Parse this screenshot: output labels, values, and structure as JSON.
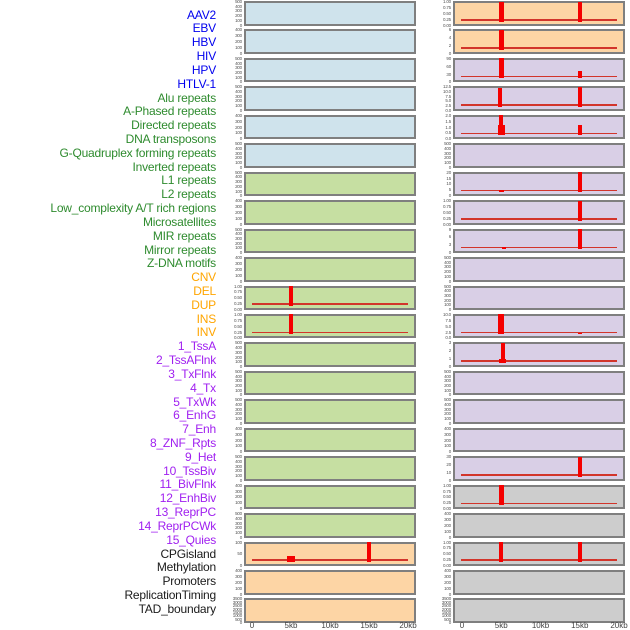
{
  "colors": {
    "label_blue": "#0000EE",
    "label_green": "#2E8B2E",
    "label_orange": "#FFA500",
    "label_purple": "#A020F0",
    "label_black": "#1A1A1A",
    "panel_blue": "#CFE3EC",
    "panel_green": "#C6DFA2",
    "panel_peach": "#FDD5A5",
    "panel_purple": "#D9CFE6",
    "panel_gray": "#CDCDCD",
    "panel_border": "#7F7F7F",
    "spike_red": "#F50000",
    "baseline_red": "#D2352B",
    "tick_text": "#555555",
    "axis_text": "#444444"
  },
  "chart_data": {
    "type": "bar",
    "title": "",
    "x_axis": {
      "tick_labels": [
        "0",
        "5kb",
        "10kb",
        "15kb",
        "20kb"
      ],
      "tick_kb": [
        0,
        5,
        10,
        15,
        20
      ],
      "domain_kb": [
        0,
        20
      ]
    },
    "row_labels": [
      {
        "text": "AAV2",
        "color": "blue"
      },
      {
        "text": "EBV",
        "color": "blue"
      },
      {
        "text": "HBV",
        "color": "blue"
      },
      {
        "text": "HIV",
        "color": "blue"
      },
      {
        "text": "HPV",
        "color": "blue"
      },
      {
        "text": "HTLV-1",
        "color": "blue"
      },
      {
        "text": "Alu repeats",
        "color": "green"
      },
      {
        "text": "A-Phased repeats",
        "color": "green"
      },
      {
        "text": "Directed repeats",
        "color": "green"
      },
      {
        "text": "DNA transposons",
        "color": "green"
      },
      {
        "text": "G-Quadruplex forming repeats",
        "color": "green"
      },
      {
        "text": "Inverted repeats",
        "color": "green"
      },
      {
        "text": "L1 repeats",
        "color": "green"
      },
      {
        "text": "L2 repeats",
        "color": "green"
      },
      {
        "text": "Low_complexity A/T rich regions",
        "color": "green"
      },
      {
        "text": "Microsatellites",
        "color": "green"
      },
      {
        "text": "MIR repeats",
        "color": "green"
      },
      {
        "text": "Mirror repeats",
        "color": "green"
      },
      {
        "text": "Z-DNA motifs",
        "color": "green"
      },
      {
        "text": "CNV",
        "color": "orange"
      },
      {
        "text": "DEL",
        "color": "orange"
      },
      {
        "text": "DUP",
        "color": "orange"
      },
      {
        "text": "INS",
        "color": "orange"
      },
      {
        "text": "INV",
        "color": "orange"
      },
      {
        "text": "1_TssA",
        "color": "purple"
      },
      {
        "text": "2_TssAFlnk",
        "color": "purple"
      },
      {
        "text": "3_TxFlnk",
        "color": "purple"
      },
      {
        "text": "4_Tx",
        "color": "purple"
      },
      {
        "text": "5_TxWk",
        "color": "purple"
      },
      {
        "text": "6_EnhG",
        "color": "purple"
      },
      {
        "text": "7_Enh",
        "color": "purple"
      },
      {
        "text": "8_ZNF_Rpts",
        "color": "purple"
      },
      {
        "text": "9_Het",
        "color": "purple"
      },
      {
        "text": "10_TssBiv",
        "color": "purple"
      },
      {
        "text": "11_BivFlnk",
        "color": "purple"
      },
      {
        "text": "12_EnhBiv",
        "color": "purple"
      },
      {
        "text": "13_ReprPC",
        "color": "purple"
      },
      {
        "text": "14_ReprPCWk",
        "color": "purple"
      },
      {
        "text": "15_Quies",
        "color": "purple"
      },
      {
        "text": "CPGisland",
        "color": "black"
      },
      {
        "text": "Methylation",
        "color": "black"
      },
      {
        "text": "Promoters",
        "color": "black"
      },
      {
        "text": "ReplicationTiming",
        "color": "black"
      },
      {
        "text": "TAD_boundary",
        "color": "black"
      }
    ],
    "columns": [
      {
        "name": "left-track-column",
        "panels": [
          {
            "bg": "blue",
            "yticks": [
              "500",
              "400",
              "300",
              "200",
              "100",
              "0"
            ],
            "spikes": [],
            "baseline": false
          },
          {
            "bg": "blue",
            "yticks": [
              "400",
              "300",
              "200",
              "100",
              "0"
            ],
            "spikes": [],
            "baseline": false
          },
          {
            "bg": "blue",
            "yticks": [
              "500",
              "400",
              "300",
              "200",
              "100",
              "0"
            ],
            "spikes": [],
            "baseline": false
          },
          {
            "bg": "blue",
            "yticks": [
              "500",
              "400",
              "300",
              "200",
              "100",
              "0"
            ],
            "spikes": [],
            "baseline": false
          },
          {
            "bg": "blue",
            "yticks": [
              "400",
              "300",
              "200",
              "100",
              "0"
            ],
            "spikes": [],
            "baseline": false
          },
          {
            "bg": "blue",
            "yticks": [
              "500",
              "400",
              "300",
              "200",
              "100",
              "0"
            ],
            "spikes": [],
            "baseline": false
          },
          {
            "bg": "green",
            "yticks": [
              "500",
              "400",
              "300",
              "200",
              "100",
              "0"
            ],
            "spikes": [],
            "baseline": false
          },
          {
            "bg": "green",
            "yticks": [
              "400",
              "300",
              "200",
              "100",
              "0"
            ],
            "spikes": [],
            "baseline": false
          },
          {
            "bg": "green",
            "yticks": [
              "500",
              "400",
              "300",
              "200",
              "100",
              "0"
            ],
            "spikes": [],
            "baseline": false
          },
          {
            "bg": "green",
            "yticks": [
              "400",
              "300",
              "200",
              "100",
              "0"
            ],
            "spikes": [],
            "baseline": false
          },
          {
            "bg": "green",
            "yticks": [
              "1.00",
              "0.75",
              "0.50",
              "0.25",
              "0.00"
            ],
            "spikes": [
              {
                "kb": 5,
                "h": 1,
                "w": 4
              }
            ],
            "baseline": true
          },
          {
            "bg": "green",
            "yticks": [
              "1.00",
              "0.75",
              "0.50",
              "0.25",
              "0.00"
            ],
            "spikes": [
              {
                "kb": 5,
                "h": 1,
                "w": 4
              }
            ],
            "baseline": true
          },
          {
            "bg": "green",
            "yticks": [
              "500",
              "400",
              "300",
              "200",
              "100",
              "0"
            ],
            "spikes": [],
            "baseline": false
          },
          {
            "bg": "green",
            "yticks": [
              "500",
              "400",
              "300",
              "200",
              "100",
              "0"
            ],
            "spikes": [],
            "baseline": false
          },
          {
            "bg": "green",
            "yticks": [
              "500",
              "400",
              "300",
              "200",
              "100",
              "0"
            ],
            "spikes": [],
            "baseline": false
          },
          {
            "bg": "green",
            "yticks": [
              "400",
              "300",
              "200",
              "100",
              "0"
            ],
            "spikes": [],
            "baseline": false
          },
          {
            "bg": "green",
            "yticks": [
              "500",
              "400",
              "300",
              "200",
              "100",
              "0"
            ],
            "spikes": [],
            "baseline": false
          },
          {
            "bg": "green",
            "yticks": [
              "400",
              "300",
              "200",
              "100",
              "0"
            ],
            "spikes": [],
            "baseline": false
          },
          {
            "bg": "green",
            "yticks": [
              "500",
              "400",
              "300",
              "200",
              "100",
              "0"
            ],
            "spikes": [],
            "baseline": false
          },
          {
            "bg": "peach",
            "yticks": [
              "100",
              "50",
              "0"
            ],
            "spikes": [
              {
                "kb": 5,
                "h": 0.3,
                "w": 8
              },
              {
                "kb": 15,
                "h": 1,
                "w": 4
              }
            ],
            "baseline": true
          },
          {
            "bg": "peach",
            "yticks": [
              "400",
              "300",
              "200",
              "100",
              "0"
            ],
            "spikes": [],
            "baseline": false
          },
          {
            "bg": "peach",
            "yticks": [
              "3500",
              "3000",
              "2500",
              "2000",
              "1500",
              "1000",
              "500",
              "0"
            ],
            "spikes": [],
            "baseline": false
          }
        ]
      },
      {
        "name": "right-track-column",
        "panels": [
          {
            "bg": "peach",
            "yticks": [
              "1.00",
              "0.75",
              "0.50",
              "0.25",
              "0.00"
            ],
            "spikes": [
              {
                "kb": 5,
                "h": 1,
                "w": 5
              },
              {
                "kb": 15,
                "h": 1,
                "w": 4
              }
            ],
            "baseline": true
          },
          {
            "bg": "peach",
            "yticks": [
              "6",
              "4",
              "2",
              "0"
            ],
            "spikes": [
              {
                "kb": 5,
                "h": 1,
                "w": 5
              }
            ],
            "baseline": true
          },
          {
            "bg": "purple",
            "yticks": [
              "90",
              "60",
              "30",
              "0"
            ],
            "spikes": [
              {
                "kb": 5,
                "h": 1,
                "w": 5
              },
              {
                "kb": 15,
                "h": 0.38,
                "w": 4
              }
            ],
            "baseline": true
          },
          {
            "bg": "purple",
            "yticks": [
              "12.5",
              "10.0",
              "7.5",
              "5.0",
              "2.5",
              "0.0"
            ],
            "spikes": [
              {
                "kb": 4.8,
                "h": 0.95,
                "w": 4
              },
              {
                "kb": 15,
                "h": 1,
                "w": 4
              }
            ],
            "baseline": true
          },
          {
            "bg": "purple",
            "yticks": [
              "2.0",
              "1.5",
              "1.0",
              "0.5",
              "0.0"
            ],
            "spikes": [
              {
                "kb": 5,
                "h": 1,
                "w": 4
              },
              {
                "kb": 5,
                "h": 0.5,
                "w": 7
              },
              {
                "kb": 15,
                "h": 0.5,
                "w": 4
              }
            ],
            "baseline": true
          },
          {
            "bg": "purple",
            "yticks": [
              "500",
              "400",
              "300",
              "200",
              "100",
              "0"
            ],
            "spikes": [],
            "baseline": false
          },
          {
            "bg": "purple",
            "yticks": [
              "20",
              "15",
              "10",
              "5",
              "0"
            ],
            "spikes": [
              {
                "kb": 5,
                "h": 0.09,
                "w": 5
              },
              {
                "kb": 15,
                "h": 1,
                "w": 4
              }
            ],
            "baseline": true
          },
          {
            "bg": "purple",
            "yticks": [
              "1.00",
              "0.75",
              "0.50",
              "0.25",
              "0.00"
            ],
            "spikes": [
              {
                "kb": 15,
                "h": 1,
                "w": 4
              }
            ],
            "baseline": true
          },
          {
            "bg": "purple",
            "yticks": [
              "9",
              "6",
              "3",
              "0"
            ],
            "spikes": [
              {
                "kb": 5.3,
                "h": 0.09,
                "w": 4
              },
              {
                "kb": 15,
                "h": 1,
                "w": 4
              }
            ],
            "baseline": true
          },
          {
            "bg": "purple",
            "yticks": [
              "500",
              "400",
              "300",
              "200",
              "100",
              "0"
            ],
            "spikes": [],
            "baseline": false
          },
          {
            "bg": "purple",
            "yticks": [
              "500",
              "400",
              "300",
              "200",
              "100",
              "0"
            ],
            "spikes": [],
            "baseline": false
          },
          {
            "bg": "purple",
            "yticks": [
              "10.0",
              "7.5",
              "5.0",
              "2.5",
              "0.0"
            ],
            "spikes": [
              {
                "kb": 5,
                "h": 1,
                "w": 6
              },
              {
                "kb": 15,
                "h": 0.09,
                "w": 4
              }
            ],
            "baseline": true
          },
          {
            "bg": "purple",
            "yticks": [
              "3",
              "2",
              "1",
              "0"
            ],
            "spikes": [
              {
                "kb": 5.2,
                "h": 1,
                "w": 4
              },
              {
                "kb": 5.2,
                "h": 0.18,
                "w": 7
              }
            ],
            "baseline": true
          },
          {
            "bg": "purple",
            "yticks": [
              "500",
              "400",
              "300",
              "200",
              "100",
              "0"
            ],
            "spikes": [],
            "baseline": false
          },
          {
            "bg": "purple",
            "yticks": [
              "500",
              "400",
              "300",
              "200",
              "100",
              "0"
            ],
            "spikes": [],
            "baseline": false
          },
          {
            "bg": "purple",
            "yticks": [
              "400",
              "300",
              "200",
              "100",
              "0"
            ],
            "spikes": [],
            "baseline": false
          },
          {
            "bg": "purple",
            "yticks": [
              "30",
              "20",
              "10",
              "0"
            ],
            "spikes": [
              {
                "kb": 15,
                "h": 1,
                "w": 4
              }
            ],
            "baseline": true
          },
          {
            "bg": "gray",
            "yticks": [
              "1.00",
              "0.75",
              "0.50",
              "0.25",
              "0.00"
            ],
            "spikes": [
              {
                "kb": 5,
                "h": 1,
                "w": 5
              }
            ],
            "baseline": true
          },
          {
            "bg": "gray",
            "yticks": [
              "400",
              "300",
              "200",
              "100",
              "0"
            ],
            "spikes": [],
            "baseline": false
          },
          {
            "bg": "gray",
            "yticks": [
              "1.00",
              "0.75",
              "0.50",
              "0.25",
              "0.00"
            ],
            "spikes": [
              {
                "kb": 5,
                "h": 1,
                "w": 4
              },
              {
                "kb": 15,
                "h": 1,
                "w": 4
              }
            ],
            "baseline": true
          },
          {
            "bg": "gray",
            "yticks": [
              "400",
              "300",
              "200",
              "100",
              "0"
            ],
            "spikes": [],
            "baseline": false
          },
          {
            "bg": "gray",
            "yticks": [
              "3500",
              "3000",
              "2500",
              "2000",
              "1500",
              "1000",
              "500",
              "0"
            ],
            "spikes": [],
            "baseline": false
          }
        ]
      }
    ]
  }
}
